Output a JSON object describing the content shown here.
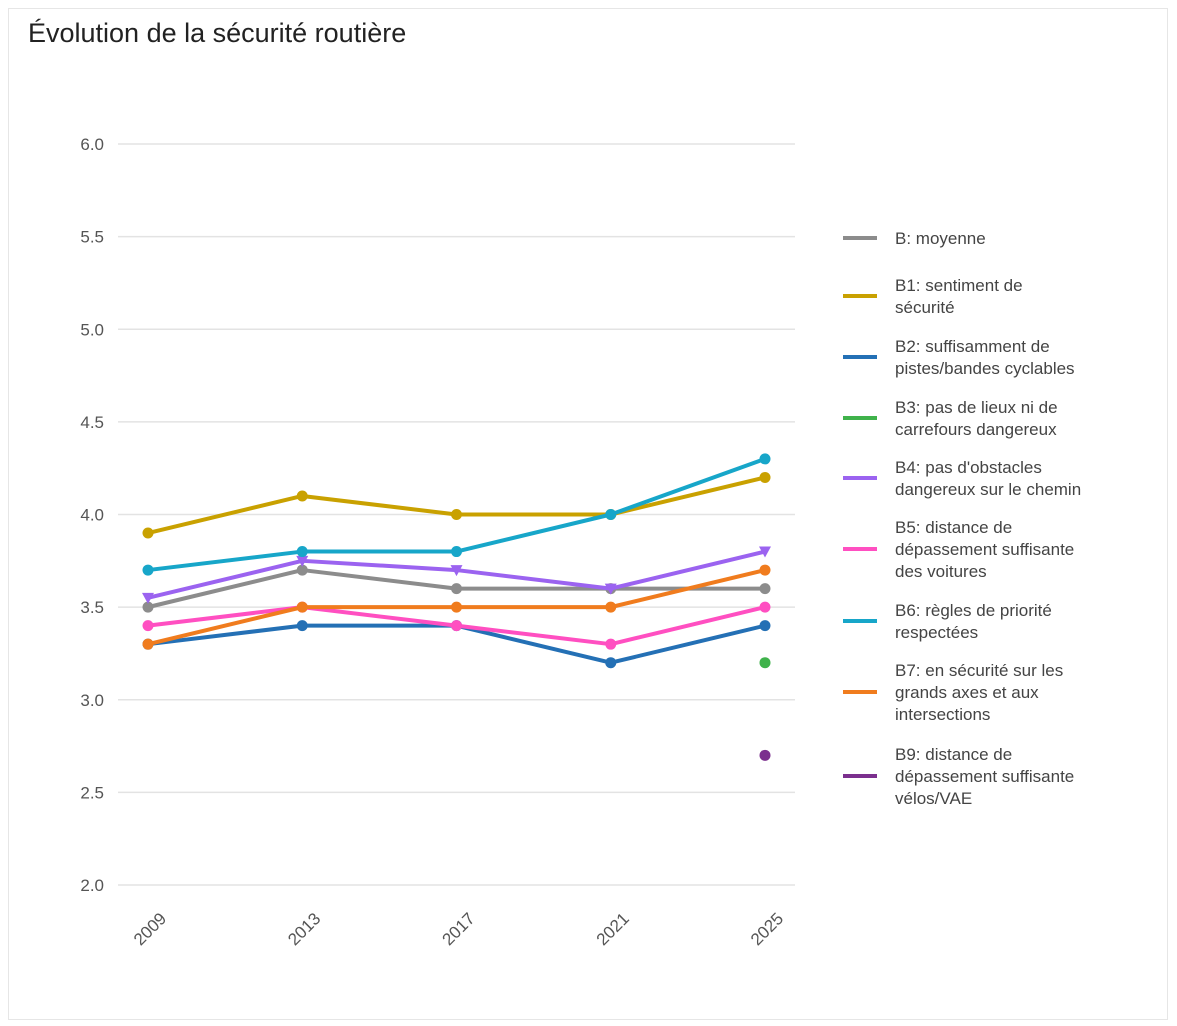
{
  "chart_data": {
    "type": "line",
    "title": "Évolution de la sécurité routière",
    "xlabel": "",
    "ylabel": "",
    "x": [
      "2009",
      "2013",
      "2017",
      "2021",
      "2025"
    ],
    "ylim": [
      2.0,
      6.0
    ],
    "yticks": [
      "2.0",
      "2.5",
      "3.0",
      "3.5",
      "4.0",
      "4.5",
      "5.0",
      "5.5",
      "6.0"
    ],
    "grid": true,
    "legend_position": "right",
    "series": [
      {
        "name": "B: moyenne",
        "name_lines": [
          "B: moyenne"
        ],
        "color": "#8c8c8c",
        "marker": "circle",
        "values": [
          3.5,
          3.7,
          3.6,
          3.6,
          3.6
        ]
      },
      {
        "name": "B1: sentiment de sécurité",
        "name_lines": [
          "B1: sentiment de",
          "sécurité"
        ],
        "color": "#c9a100",
        "marker": "circle",
        "values": [
          3.9,
          4.1,
          4.0,
          4.0,
          4.2
        ]
      },
      {
        "name": "B2: suffisamment de pistes/bandes cyclables",
        "name_lines": [
          "B2: suffisamment de",
          "pistes/bandes cyclables"
        ],
        "color": "#2470b5",
        "marker": "circle",
        "values": [
          3.3,
          3.4,
          3.4,
          3.2,
          3.4
        ]
      },
      {
        "name": "B3: pas de lieux ni de carrefours dangereux",
        "name_lines": [
          "B3: pas de lieux ni de",
          "carrefours dangereux"
        ],
        "color": "#3fb24b",
        "marker": "circle",
        "values": [
          null,
          null,
          null,
          null,
          3.2
        ]
      },
      {
        "name": "B4: pas d'obstacles dangereux sur le chemin",
        "name_lines": [
          "B4: pas d'obstacles",
          "dangereux sur le chemin"
        ],
        "color": "#9b63f0",
        "marker": "triangle-first",
        "values": [
          3.55,
          3.75,
          3.7,
          3.6,
          3.8
        ]
      },
      {
        "name": "B5: distance de dépassement suffisante des voitures",
        "name_lines": [
          "B5: distance de",
          "dépassement suffisante",
          "des voitures"
        ],
        "color": "#ff4fc1",
        "marker": "circle",
        "values": [
          3.4,
          3.5,
          3.4,
          3.3,
          3.5
        ]
      },
      {
        "name": "B6: règles de priorité respectées",
        "name_lines": [
          "B6: règles de priorité",
          "respectées"
        ],
        "color": "#17a6c9",
        "marker": "circle",
        "values": [
          3.7,
          3.8,
          3.8,
          4.0,
          4.3
        ]
      },
      {
        "name": "B7: en sécurité sur les grands axes et aux intersections",
        "name_lines": [
          "B7: en sécurité sur les",
          "grands axes et aux",
          "intersections"
        ],
        "color": "#f07c1e",
        "marker": "circle",
        "values": [
          3.3,
          3.5,
          3.5,
          3.5,
          3.7
        ]
      },
      {
        "name": "B9: distance de dépassement suffisante vélos/VAE",
        "name_lines": [
          "B9: distance de",
          "dépassement suffisante",
          "vélos/VAE"
        ],
        "color": "#7b2f8e",
        "marker": "circle",
        "values": [
          null,
          null,
          null,
          null,
          2.7
        ]
      }
    ]
  }
}
